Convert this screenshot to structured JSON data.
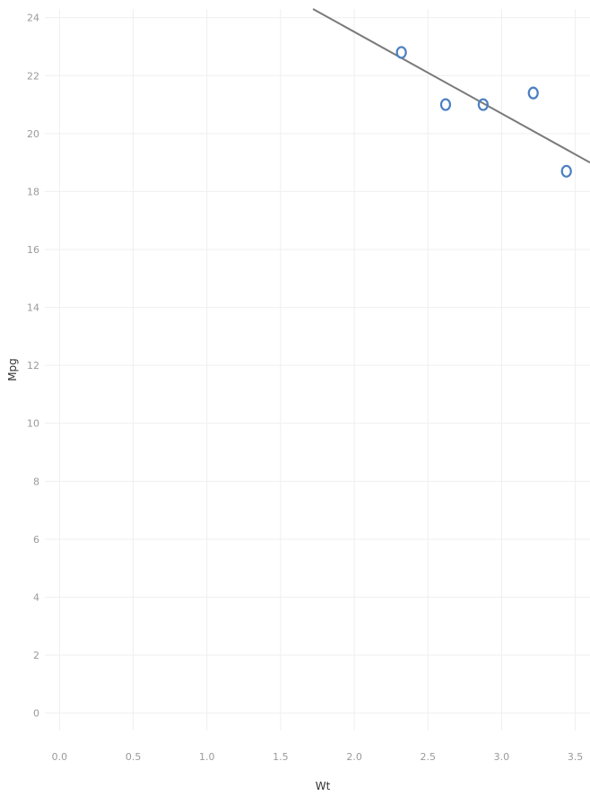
{
  "chart_data": {
    "type": "scatter",
    "xlabel": "Wt",
    "ylabel": "Mpg",
    "xlim": [
      -0.1,
      3.6
    ],
    "ylim": [
      -0.6,
      24.3
    ],
    "x_ticks": [
      "0.0",
      "0.5",
      "1.0",
      "1.5",
      "2.0",
      "2.5",
      "3.0",
      "3.5"
    ],
    "y_ticks": [
      "0",
      "2",
      "4",
      "6",
      "8",
      "10",
      "12",
      "14",
      "16",
      "18",
      "20",
      "22",
      "24"
    ],
    "grid": true,
    "points": [
      {
        "x": 2.32,
        "y": 22.8
      },
      {
        "x": 2.62,
        "y": 21.0
      },
      {
        "x": 2.875,
        "y": 21.0
      },
      {
        "x": 3.215,
        "y": 21.4
      },
      {
        "x": 3.44,
        "y": 18.7
      }
    ],
    "trend_line": {
      "x": [
        1.72,
        3.6
      ],
      "y": [
        24.3,
        19.0
      ]
    },
    "colors": {
      "points": "#4a7fc1",
      "trend": "#7a7a7a",
      "grid": "#efefef"
    }
  }
}
